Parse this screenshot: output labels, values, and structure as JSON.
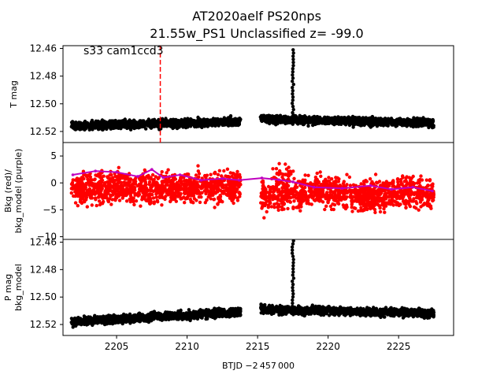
{
  "chart_data": {
    "type": "scatter",
    "title_line1": "AT2020aelf  PS20nps",
    "title_line2": "21.55w_PS1 Unclassified z= -99.0",
    "xlabel": "BTJD −2 457 000",
    "xlim": [
      2201.2,
      2228.9
    ],
    "xticks": [
      "2205",
      "2210",
      "2215",
      "2220",
      "2225"
    ],
    "gap": [
      2213.8,
      2215.2
    ],
    "x_range": [
      2201.8,
      2227.5
    ],
    "marker_x": 2208.1,
    "marker_color": "#ff0000",
    "annotation": "s33 cam1ccd3",
    "panels": [
      {
        "id": "tmag",
        "ylabel_lines": [
          "T mag"
        ],
        "ylim": [
          12.528,
          12.458
        ],
        "yticks": [
          "12.46",
          "12.48",
          "12.50",
          "12.52"
        ],
        "ytick_values": [
          12.46,
          12.48,
          12.5,
          12.52
        ],
        "color": "#000000",
        "baseline": [
          12.516,
          12.513
        ],
        "baseline_after_gap": [
          12.511,
          12.514
        ],
        "scatter": 0.0035,
        "flare_x": 2217.5,
        "flare_peak": 12.461
      },
      {
        "id": "bkg",
        "ylabel_lines": [
          "Bkg (red)/",
          "bkg_model (purple)"
        ],
        "ylim": [
          -10.5,
          7.5
        ],
        "yticks": [
          "5",
          "0",
          "−5",
          "−10"
        ],
        "ytick_values": [
          5,
          0,
          -5,
          -10
        ],
        "color": "#ff0000",
        "model_color": "#bf00bf",
        "model_points": [
          [
            2201.9,
            1.5
          ],
          [
            2203.5,
            2.2
          ],
          [
            2205.0,
            2.0
          ],
          [
            2206.5,
            1.2
          ],
          [
            2207.5,
            2.5
          ],
          [
            2208.3,
            1.0
          ],
          [
            2209.5,
            1.5
          ],
          [
            2211.0,
            0.5
          ],
          [
            2212.5,
            0.8
          ],
          [
            2213.7,
            0.5
          ],
          [
            2215.3,
            0.9
          ],
          [
            2216.5,
            0.6
          ],
          [
            2217.5,
            0.2
          ],
          [
            2219.0,
            -0.8
          ],
          [
            2221.0,
            -1.0
          ],
          [
            2223.0,
            -0.5
          ],
          [
            2224.5,
            -1.2
          ],
          [
            2226.0,
            -0.8
          ],
          [
            2227.4,
            -1.5
          ]
        ]
      },
      {
        "id": "pmag",
        "ylabel_lines": [
          "P mag",
          "bkg_model"
        ],
        "ylim": [
          12.528,
          12.458
        ],
        "yticks": [
          "12.46",
          "12.48",
          "12.50",
          "12.52"
        ],
        "ytick_values": [
          12.46,
          12.48,
          12.5,
          12.52
        ],
        "color": "#000000",
        "baseline": [
          12.518,
          12.511
        ],
        "baseline_after_gap": [
          12.509,
          12.512
        ],
        "scatter": 0.0035,
        "flare_x": 2217.5,
        "flare_peak": 12.459
      }
    ]
  }
}
